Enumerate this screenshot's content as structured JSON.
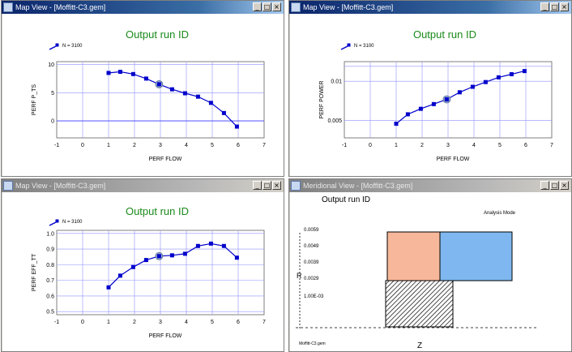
{
  "windows": [
    {
      "id": "w1",
      "title": "Map View - [Moffitt-C3.gem]",
      "active": true
    },
    {
      "id": "w2",
      "title": "Map View - [Moffitt-C3.gem]",
      "active": false
    },
    {
      "id": "w3",
      "title": "Map View - [Moffitt-C3.gem]",
      "active": false
    },
    {
      "id": "w4",
      "title": "Meridional View - [Moffitt-C3.gem]",
      "active": false
    }
  ],
  "window_buttons": {
    "minimize": "_",
    "maximize": "□",
    "close": "×"
  },
  "colors": {
    "title_green": "#1a8a1a",
    "series_blue": "#0000cc",
    "grid_blue": "#9090ff",
    "zero_line": "#4040ff",
    "salmon": "#f7b79a",
    "sky": "#7fb8f0"
  },
  "chart_data": [
    {
      "type": "line",
      "title": "Output run ID",
      "legend": "N = 3100",
      "xlabel": "PERF FLOW",
      "ylabel": "PERF P_TS",
      "xlim": [
        -1,
        7
      ],
      "ylim": [
        -3,
        10.5
      ],
      "xticks": [
        -1,
        0,
        1,
        2,
        3,
        4,
        5,
        6,
        7
      ],
      "yticks": [
        0,
        5,
        10
      ],
      "x": [
        1,
        1.45,
        1.95,
        2.45,
        2.95,
        3.45,
        3.95,
        4.45,
        4.95,
        5.45,
        5.95
      ],
      "y": [
        8.5,
        8.7,
        8.3,
        7.5,
        6.5,
        5.6,
        4.9,
        4.3,
        3.2,
        1.4,
        -1.0
      ],
      "highlight": {
        "x": 2.95,
        "y": 6.5
      }
    },
    {
      "type": "line",
      "title": "Output run ID",
      "legend": "N = 3100",
      "xlabel": "PERF FLOW",
      "ylabel": "PERF POWER",
      "xlim": [
        -1,
        7
      ],
      "ylim": [
        0.0028,
        0.0125
      ],
      "xticks": [
        -1,
        0,
        1,
        2,
        3,
        4,
        5,
        6,
        7
      ],
      "yticks": [
        0.005,
        0.01
      ],
      "ytick_labels": [
        "0.005",
        "0.01"
      ],
      "x": [
        1,
        1.45,
        1.95,
        2.45,
        2.95,
        3.45,
        3.95,
        4.45,
        4.95,
        5.45,
        5.95
      ],
      "y": [
        0.0046,
        0.0058,
        0.0065,
        0.0071,
        0.0077,
        0.0086,
        0.0093,
        0.0099,
        0.0105,
        0.0109,
        0.0113
      ],
      "highlight": {
        "x": 2.95,
        "y": 0.0077
      }
    },
    {
      "type": "line",
      "title": "Output run ID",
      "legend": "N = 3100",
      "xlabel": "PERF FLOW",
      "ylabel": "PERF EFF_TT",
      "xlim": [
        -1,
        7
      ],
      "ylim": [
        0.48,
        1.02
      ],
      "xticks": [
        -1,
        0,
        1,
        2,
        3,
        4,
        5,
        6,
        7
      ],
      "yticks": [
        0.5,
        0.6,
        0.7,
        0.8,
        0.9,
        1.0
      ],
      "ytick_labels": [
        "0.5",
        "0.6",
        "0.7",
        "0.8",
        "0.9",
        "1.0"
      ],
      "x": [
        1,
        1.45,
        1.95,
        2.45,
        2.95,
        3.45,
        3.95,
        4.45,
        4.95,
        5.45,
        5.95
      ],
      "y": [
        0.655,
        0.73,
        0.785,
        0.83,
        0.855,
        0.86,
        0.87,
        0.92,
        0.935,
        0.92,
        0.845
      ],
      "highlight": {
        "x": 2.95,
        "y": 0.855
      }
    }
  ],
  "meridional": {
    "title": "Output run ID",
    "mode": "Analysis Mode",
    "r_label": "R",
    "z_label": "Z",
    "footer": "Moffitt-C3.gem",
    "r_ticks": [
      "0.0059",
      "0.0049",
      "0.0039",
      "0.0029",
      "1.00E-03"
    ]
  }
}
